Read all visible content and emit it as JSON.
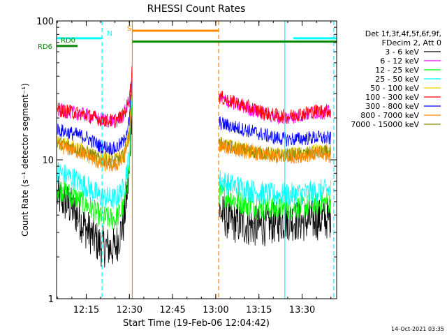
{
  "chart_data": {
    "type": "line",
    "title": "RHESSI Count Rates",
    "xlabel": "Start Time (19-Feb-06 12:04:42)",
    "ylabel": "Count Rate (s⁻¹ detector segment⁻¹)",
    "y_scale": "log",
    "ylim": [
      1,
      100
    ],
    "xlim": [
      "12:04:42",
      "13:42:00"
    ],
    "x_ticks": [
      "12:15",
      "12:30",
      "12:45",
      "13:00",
      "13:15",
      "13:30"
    ],
    "y_ticks": [
      "1",
      "10",
      "100"
    ],
    "legend_header": [
      "Det 1f,3f,4f,5f,6f,9f,",
      "FDecim 2, Att 0"
    ],
    "legend_placement": "right",
    "timestamp": "14-Oct-2021 03:35",
    "x": [
      "12:05",
      "12:10",
      "12:15",
      "12:20",
      "12:25",
      "12:28",
      "12:30",
      "12:31",
      "13:01",
      "13:05",
      "13:10",
      "13:15",
      "13:20",
      "13:25",
      "13:30",
      "13:35",
      "13:40"
    ],
    "series": [
      {
        "name": "3 - 6 keV",
        "color": "#000000",
        "values": [
          5.5,
          4.5,
          3.2,
          2.4,
          2.3,
          3.5,
          8,
          30,
          4.3,
          3.6,
          3.4,
          3.3,
          3.5,
          3.7,
          3.6,
          3.7,
          3.8
        ]
      },
      {
        "name": "6 - 12 keV",
        "color": "#ff00ff",
        "values": [
          23,
          22,
          21,
          19.5,
          19,
          21,
          27,
          45,
          28,
          26,
          24,
          22,
          20.5,
          20,
          21,
          22,
          22
        ]
      },
      {
        "name": "12 - 25 keV",
        "color": "#00ff00",
        "values": [
          6.3,
          5.5,
          4.8,
          3.9,
          3.7,
          4.5,
          9,
          33,
          5.8,
          5.3,
          4.8,
          4.5,
          4.4,
          4.5,
          4.6,
          4.8,
          5.0
        ]
      },
      {
        "name": "25 - 50 keV",
        "color": "#00ffff",
        "values": [
          8.2,
          7.4,
          6.5,
          5.4,
          5.2,
          6.2,
          11,
          36,
          7.2,
          6.6,
          6.2,
          5.8,
          5.6,
          5.6,
          5.7,
          5.9,
          6.1
        ]
      },
      {
        "name": "50 - 100 keV",
        "color": "#ffcc00",
        "values": [
          13.5,
          12.5,
          11.5,
          10.3,
          10.0,
          11.0,
          16,
          40,
          13.5,
          12.5,
          12.0,
          11.5,
          11.0,
          11.0,
          11.2,
          11.5,
          11.8
        ]
      },
      {
        "name": "100 - 300 keV",
        "color": "#ff0000",
        "values": [
          23,
          22,
          21,
          19.5,
          19,
          21,
          27,
          46,
          28.5,
          26.5,
          24.5,
          22.5,
          21,
          20.5,
          21.5,
          22.5,
          22.5
        ]
      },
      {
        "name": "300 - 800 keV",
        "color": "#0000ff",
        "values": [
          16.5,
          15.5,
          14.5,
          12.5,
          12.0,
          13.5,
          19,
          42,
          18.5,
          17.5,
          16.5,
          15.5,
          14.5,
          14.0,
          14.2,
          14.5,
          14.2
        ]
      },
      {
        "name": "800 - 7000 keV",
        "color": "#ff8800",
        "values": [
          12.5,
          11.8,
          10.8,
          9.3,
          9.0,
          10.0,
          14.5,
          38,
          12.8,
          12.0,
          11.5,
          11.0,
          10.5,
          10.5,
          10.7,
          11.0,
          10.5
        ]
      },
      {
        "name": "7000 - 15000 keV",
        "color": "#888800",
        "values": [
          13.3,
          12.4,
          11.4,
          10.0,
          9.7,
          10.7,
          15.5,
          39,
          13.2,
          12.3,
          11.8,
          11.3,
          10.8,
          10.8,
          11.0,
          11.3,
          11.3
        ]
      }
    ],
    "flags": [
      {
        "label": "N",
        "color": "#00ffff",
        "value": 75,
        "segments": [
          [
            "12:04:42",
            "12:20:30"
          ],
          [
            "13:27:00",
            "13:42:00"
          ]
        ]
      },
      {
        "label": "S",
        "color": "#ff8800",
        "value": 85,
        "segments": [
          [
            "12:31:00",
            "13:01:00"
          ]
        ]
      },
      {
        "label": "RD0",
        "color": "#008800",
        "value": 71,
        "segments": [
          [
            "12:31:00",
            "13:42:00"
          ]
        ]
      },
      {
        "label": "RD6",
        "color": "#008800",
        "value": 66,
        "segments": [
          [
            "12:04:42",
            "12:12:00"
          ]
        ]
      }
    ],
    "markers": [
      {
        "time": "12:20:30",
        "color": "#00ffff",
        "style": "dashed"
      },
      {
        "time": "12:31:00",
        "color": "#ff8800",
        "style": "solid"
      },
      {
        "time": "13:01:00",
        "color": "#ff8800",
        "style": "dashed"
      },
      {
        "time": "13:24:00",
        "color": "#00ffff",
        "style": "solid"
      },
      {
        "time": "13:41:00",
        "color": "#00ffff",
        "style": "dashed"
      }
    ]
  }
}
